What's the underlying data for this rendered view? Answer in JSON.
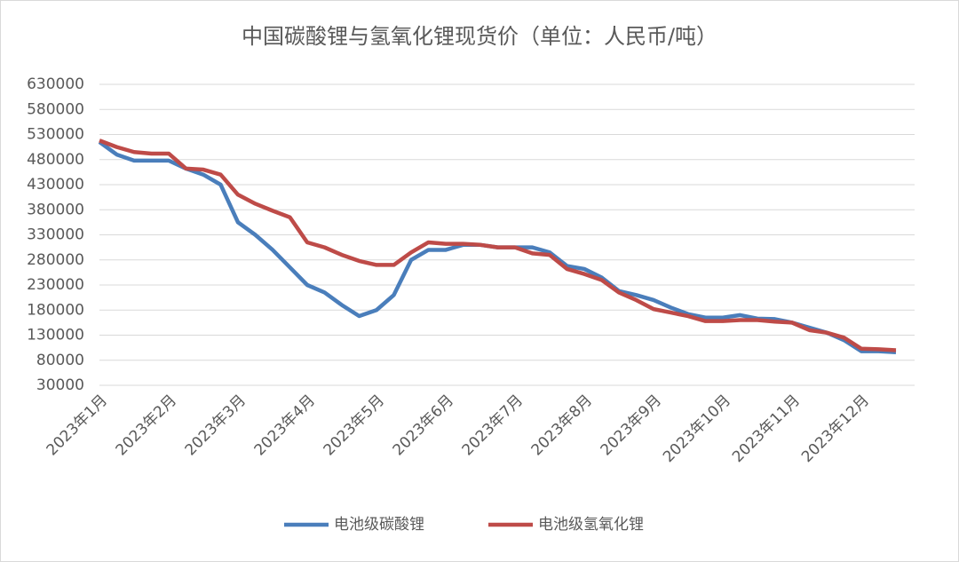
{
  "chart_data": {
    "type": "line",
    "title": "中国碳酸锂与氢氧化锂现货价（单位：人民币/吨）",
    "categories": [
      "2023年1月",
      null,
      null,
      null,
      "2023年2月",
      null,
      null,
      null,
      "2023年3月",
      null,
      null,
      null,
      "2023年4月",
      null,
      null,
      null,
      "2023年5月",
      null,
      null,
      null,
      "2023年6月",
      null,
      null,
      null,
      "2023年7月",
      null,
      null,
      null,
      "2023年8月",
      null,
      null,
      null,
      "2023年9月",
      null,
      null,
      null,
      "2023年10月",
      null,
      null,
      null,
      "2023年11月",
      null,
      null,
      null,
      "2023年12月",
      null,
      null
    ],
    "series": [
      {
        "name": "电池级碳酸锂",
        "color": "#4a7ebb",
        "values": [
          515000,
          490000,
          478000,
          478000,
          478000,
          462000,
          450000,
          430000,
          355000,
          330000,
          300000,
          265000,
          230000,
          215000,
          190000,
          168000,
          180000,
          210000,
          280000,
          300000,
          300000,
          310000,
          310000,
          305000,
          305000,
          305000,
          295000,
          268000,
          262000,
          245000,
          218000,
          210000,
          200000,
          185000,
          172000,
          165000,
          165000,
          170000,
          163000,
          162000,
          155000,
          145000,
          135000,
          120000,
          98000,
          98000,
          96000
        ]
      },
      {
        "name": "电池级氢氧化锂",
        "color": "#be4b48",
        "values": [
          518000,
          505000,
          495000,
          492000,
          492000,
          462000,
          460000,
          450000,
          410000,
          392000,
          378000,
          365000,
          315000,
          305000,
          290000,
          278000,
          270000,
          270000,
          295000,
          315000,
          312000,
          312000,
          310000,
          305000,
          305000,
          293000,
          290000,
          262000,
          252000,
          240000,
          215000,
          200000,
          182000,
          175000,
          168000,
          158000,
          158000,
          160000,
          160000,
          157000,
          155000,
          140000,
          135000,
          125000,
          103000,
          102000,
          100000
        ]
      }
    ],
    "ylim": [
      30000,
      630000
    ],
    "yticks": [
      30000,
      80000,
      130000,
      180000,
      230000,
      280000,
      330000,
      380000,
      430000,
      480000,
      530000,
      580000,
      630000
    ],
    "grid": true,
    "legend": "bottom"
  }
}
